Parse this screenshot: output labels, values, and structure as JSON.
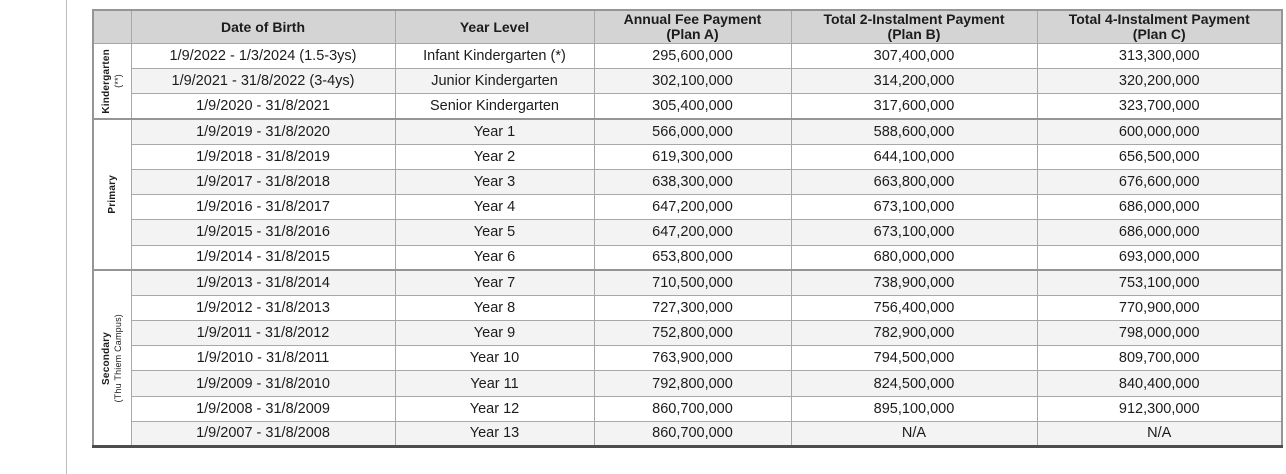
{
  "colors": {
    "header_bg": "#d4d4d4",
    "stripe_bg": "#f3f3f3",
    "border": "#a8a8a8",
    "heavy_border": "#959595",
    "bottom_border": "#4d4d4d",
    "text": "#1c1c1c",
    "page_line": "#bdbdbd"
  },
  "table": {
    "columns": [
      {
        "title": "Date of Birth",
        "subtitle": ""
      },
      {
        "title": "Year Level",
        "subtitle": ""
      },
      {
        "title": "Annual Fee Payment",
        "subtitle": "(Plan A)"
      },
      {
        "title": "Total 2-Instalment Payment",
        "subtitle": "(Plan B)"
      },
      {
        "title": "Total 4-Instalment Payment",
        "subtitle": "(Plan C)"
      }
    ],
    "groups": [
      {
        "id": "kindergarten",
        "label": "Kindergarten",
        "sublabel": "(**)",
        "rows": [
          {
            "date_of_birth": "1/9/2022 - 1/3/2024 (1.5-3ys)",
            "year_level": "Infant Kindergarten (*)",
            "plan_a": "295,600,000",
            "plan_b": "307,400,000",
            "plan_c": "313,300,000"
          },
          {
            "date_of_birth": "1/9/2021 - 31/8/2022 (3-4ys)",
            "year_level": "Junior Kindergarten",
            "plan_a": "302,100,000",
            "plan_b": "314,200,000",
            "plan_c": "320,200,000"
          },
          {
            "date_of_birth": "1/9/2020 - 31/8/2021",
            "year_level": "Senior Kindergarten",
            "plan_a": "305,400,000",
            "plan_b": "317,600,000",
            "plan_c": "323,700,000"
          }
        ]
      },
      {
        "id": "primary",
        "label": "Primary",
        "sublabel": "",
        "rows": [
          {
            "date_of_birth": "1/9/2019 - 31/8/2020",
            "year_level": "Year 1",
            "plan_a": "566,000,000",
            "plan_b": "588,600,000",
            "plan_c": "600,000,000"
          },
          {
            "date_of_birth": "1/9/2018 - 31/8/2019",
            "year_level": "Year 2",
            "plan_a": "619,300,000",
            "plan_b": "644,100,000",
            "plan_c": "656,500,000"
          },
          {
            "date_of_birth": "1/9/2017 - 31/8/2018",
            "year_level": "Year 3",
            "plan_a": "638,300,000",
            "plan_b": "663,800,000",
            "plan_c": "676,600,000"
          },
          {
            "date_of_birth": "1/9/2016 - 31/8/2017",
            "year_level": "Year 4",
            "plan_a": "647,200,000",
            "plan_b": "673,100,000",
            "plan_c": "686,000,000"
          },
          {
            "date_of_birth": "1/9/2015 - 31/8/2016",
            "year_level": "Year 5",
            "plan_a": "647,200,000",
            "plan_b": "673,100,000",
            "plan_c": "686,000,000"
          },
          {
            "date_of_birth": "1/9/2014 - 31/8/2015",
            "year_level": "Year 6",
            "plan_a": "653,800,000",
            "plan_b": "680,000,000",
            "plan_c": "693,000,000"
          }
        ]
      },
      {
        "id": "secondary",
        "label": "Secondary",
        "sublabel": "(Thu Thiem Campus)",
        "rows": [
          {
            "date_of_birth": "1/9/2013 - 31/8/2014",
            "year_level": "Year 7",
            "plan_a": "710,500,000",
            "plan_b": "738,900,000",
            "plan_c": "753,100,000"
          },
          {
            "date_of_birth": "1/9/2012 - 31/8/2013",
            "year_level": "Year 8",
            "plan_a": "727,300,000",
            "plan_b": "756,400,000",
            "plan_c": "770,900,000"
          },
          {
            "date_of_birth": "1/9/2011 - 31/8/2012",
            "year_level": "Year 9",
            "plan_a": "752,800,000",
            "plan_b": "782,900,000",
            "plan_c": "798,000,000"
          },
          {
            "date_of_birth": "1/9/2010 - 31/8/2011",
            "year_level": "Year 10",
            "plan_a": "763,900,000",
            "plan_b": "794,500,000",
            "plan_c": "809,700,000"
          },
          {
            "date_of_birth": "1/9/2009 - 31/8/2010",
            "year_level": "Year 11",
            "plan_a": "792,800,000",
            "plan_b": "824,500,000",
            "plan_c": "840,400,000"
          },
          {
            "date_of_birth": "1/9/2008 - 31/8/2009",
            "year_level": "Year 12",
            "plan_a": "860,700,000",
            "plan_b": "895,100,000",
            "plan_c": "912,300,000"
          },
          {
            "date_of_birth": "1/9/2007 - 31/8/2008",
            "year_level": "Year 13",
            "plan_a": "860,700,000",
            "plan_b": "N/A",
            "plan_c": "N/A"
          }
        ]
      }
    ]
  }
}
